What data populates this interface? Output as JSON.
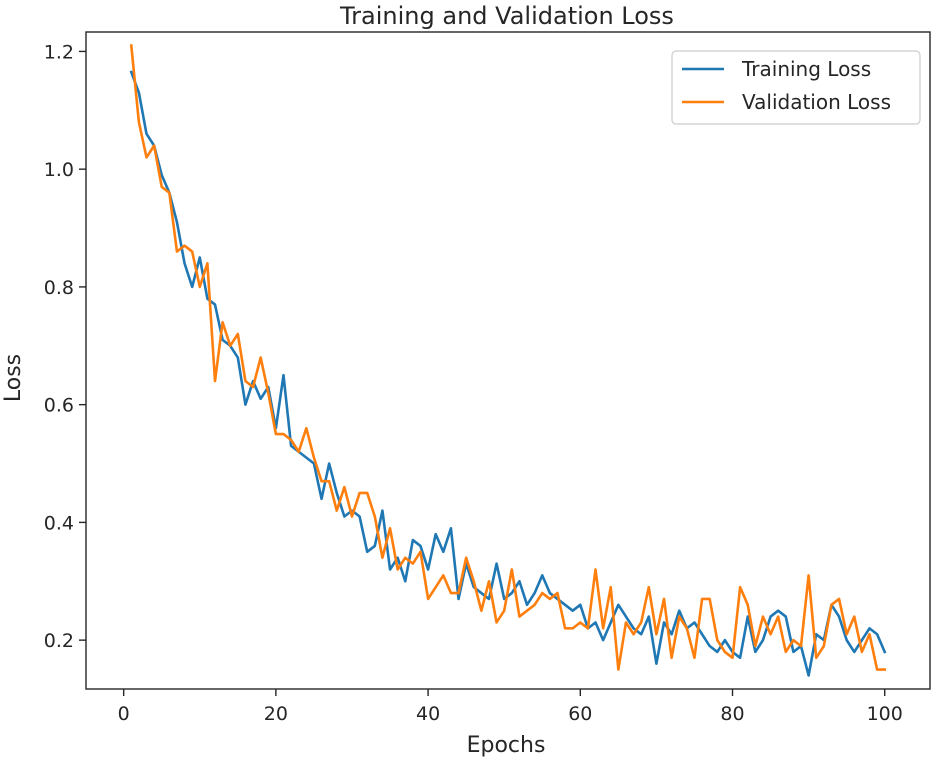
{
  "chart_data": {
    "type": "line",
    "title": "Training and Validation Loss",
    "xlabel": "Epochs",
    "ylabel": "Loss",
    "xlim": [
      -4.95,
      105.95
    ],
    "ylim": [
      0.117,
      1.233
    ],
    "xticks": [
      0,
      20,
      40,
      60,
      80,
      100
    ],
    "yticks": [
      0.2,
      0.4,
      0.6,
      0.8,
      1.0,
      1.2
    ],
    "xtick_labels": [
      "0",
      "20",
      "40",
      "60",
      "80",
      "100"
    ],
    "ytick_labels": [
      "0.2",
      "0.4",
      "0.6",
      "0.8",
      "1.0",
      "1.2"
    ],
    "grid": false,
    "legend_position": "top-right",
    "x": [
      1,
      2,
      3,
      4,
      5,
      6,
      7,
      8,
      9,
      10,
      11,
      12,
      13,
      14,
      15,
      16,
      17,
      18,
      19,
      20,
      21,
      22,
      23,
      24,
      25,
      26,
      27,
      28,
      29,
      30,
      31,
      32,
      33,
      34,
      35,
      36,
      37,
      38,
      39,
      40,
      41,
      42,
      43,
      44,
      45,
      46,
      47,
      48,
      49,
      50,
      51,
      52,
      53,
      54,
      55,
      56,
      57,
      58,
      59,
      60,
      61,
      62,
      63,
      64,
      65,
      66,
      67,
      68,
      69,
      70,
      71,
      72,
      73,
      74,
      75,
      76,
      77,
      78,
      79,
      80,
      81,
      82,
      83,
      84,
      85,
      86,
      87,
      88,
      89,
      90,
      91,
      92,
      93,
      94,
      95,
      96,
      97,
      98,
      99,
      100
    ],
    "series": [
      {
        "name": "Training Loss",
        "color": "#1f77b4",
        "values": [
          1.165,
          1.13,
          1.06,
          1.04,
          0.99,
          0.96,
          0.91,
          0.84,
          0.8,
          0.85,
          0.78,
          0.77,
          0.71,
          0.7,
          0.68,
          0.6,
          0.64,
          0.61,
          0.63,
          0.56,
          0.65,
          0.53,
          0.52,
          0.51,
          0.5,
          0.44,
          0.5,
          0.45,
          0.41,
          0.42,
          0.41,
          0.35,
          0.36,
          0.42,
          0.32,
          0.34,
          0.3,
          0.37,
          0.36,
          0.32,
          0.38,
          0.35,
          0.39,
          0.27,
          0.33,
          0.29,
          0.28,
          0.27,
          0.33,
          0.27,
          0.28,
          0.3,
          0.26,
          0.28,
          0.31,
          0.28,
          0.27,
          0.26,
          0.25,
          0.26,
          0.22,
          0.23,
          0.2,
          0.23,
          0.26,
          0.24,
          0.22,
          0.21,
          0.24,
          0.16,
          0.23,
          0.21,
          0.25,
          0.22,
          0.23,
          0.21,
          0.19,
          0.18,
          0.2,
          0.18,
          0.17,
          0.24,
          0.18,
          0.2,
          0.24,
          0.25,
          0.24,
          0.18,
          0.19,
          0.14,
          0.21,
          0.2,
          0.26,
          0.24,
          0.2,
          0.18,
          0.2,
          0.22,
          0.21,
          0.18
        ]
      },
      {
        "name": "Validation Loss",
        "color": "#ff7f0e",
        "values": [
          1.21,
          1.08,
          1.02,
          1.04,
          0.97,
          0.96,
          0.86,
          0.87,
          0.86,
          0.8,
          0.84,
          0.64,
          0.74,
          0.7,
          0.72,
          0.64,
          0.63,
          0.68,
          0.62,
          0.55,
          0.55,
          0.54,
          0.52,
          0.56,
          0.51,
          0.47,
          0.47,
          0.42,
          0.46,
          0.41,
          0.45,
          0.45,
          0.41,
          0.34,
          0.39,
          0.32,
          0.34,
          0.33,
          0.35,
          0.27,
          0.29,
          0.31,
          0.28,
          0.28,
          0.34,
          0.3,
          0.25,
          0.3,
          0.23,
          0.25,
          0.32,
          0.24,
          0.25,
          0.26,
          0.28,
          0.27,
          0.28,
          0.22,
          0.22,
          0.23,
          0.22,
          0.32,
          0.22,
          0.29,
          0.15,
          0.23,
          0.21,
          0.23,
          0.29,
          0.21,
          0.27,
          0.17,
          0.24,
          0.22,
          0.17,
          0.27,
          0.27,
          0.2,
          0.18,
          0.17,
          0.29,
          0.26,
          0.19,
          0.24,
          0.21,
          0.24,
          0.18,
          0.2,
          0.19,
          0.31,
          0.17,
          0.19,
          0.26,
          0.27,
          0.21,
          0.24,
          0.18,
          0.21,
          0.15,
          0.15
        ]
      }
    ]
  }
}
